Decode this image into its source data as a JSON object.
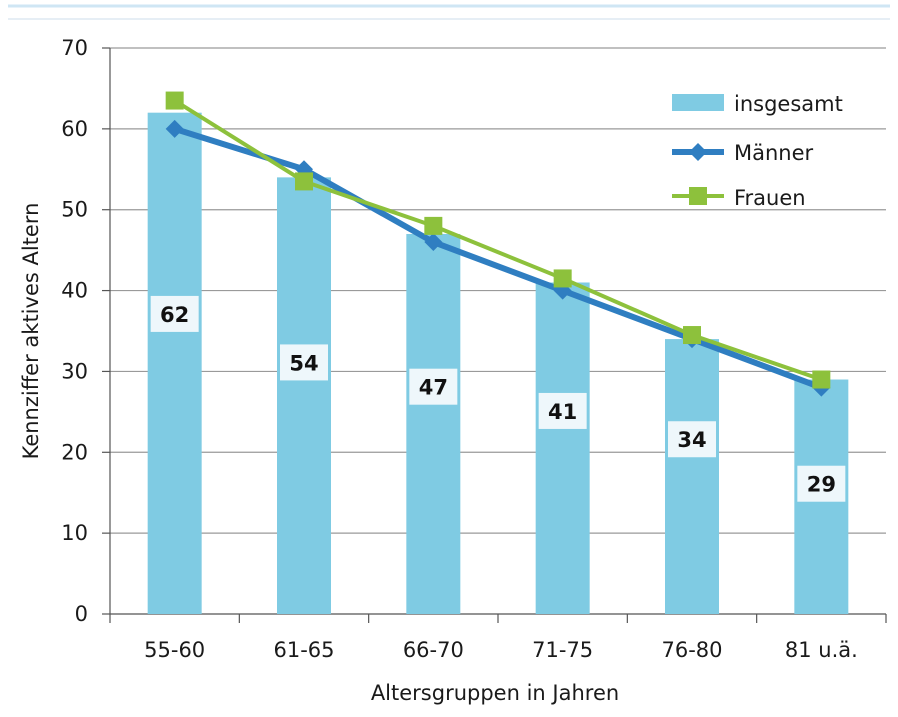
{
  "chart_data": {
    "type": "bar",
    "categories": [
      "55-60",
      "61-65",
      "66-70",
      "71-75",
      "76-80",
      "81 u.ä."
    ],
    "series": [
      {
        "name": "insgesamt",
        "kind": "bar",
        "values": [
          62,
          54,
          47,
          41,
          34,
          29
        ],
        "color": "#7fcbe3"
      },
      {
        "name": "Männer",
        "kind": "line",
        "marker": "diamond",
        "values": [
          60,
          55,
          46,
          40,
          34,
          28
        ],
        "color": "#2f7ec1"
      },
      {
        "name": "Frauen",
        "kind": "line",
        "marker": "square",
        "values": [
          63.5,
          53.5,
          48,
          41.5,
          34.5,
          29
        ],
        "color": "#8dc13c"
      }
    ],
    "data_labels": [
      "62",
      "54",
      "47",
      "41",
      "34",
      "29"
    ],
    "xlabel": "Altersgruppen in Jahren",
    "ylabel": "Kennziffer aktives Altern",
    "ylim": [
      0,
      70
    ],
    "yticks": [
      0,
      10,
      20,
      30,
      40,
      50,
      60,
      70
    ],
    "grid": true,
    "legend_position": "top-right"
  }
}
